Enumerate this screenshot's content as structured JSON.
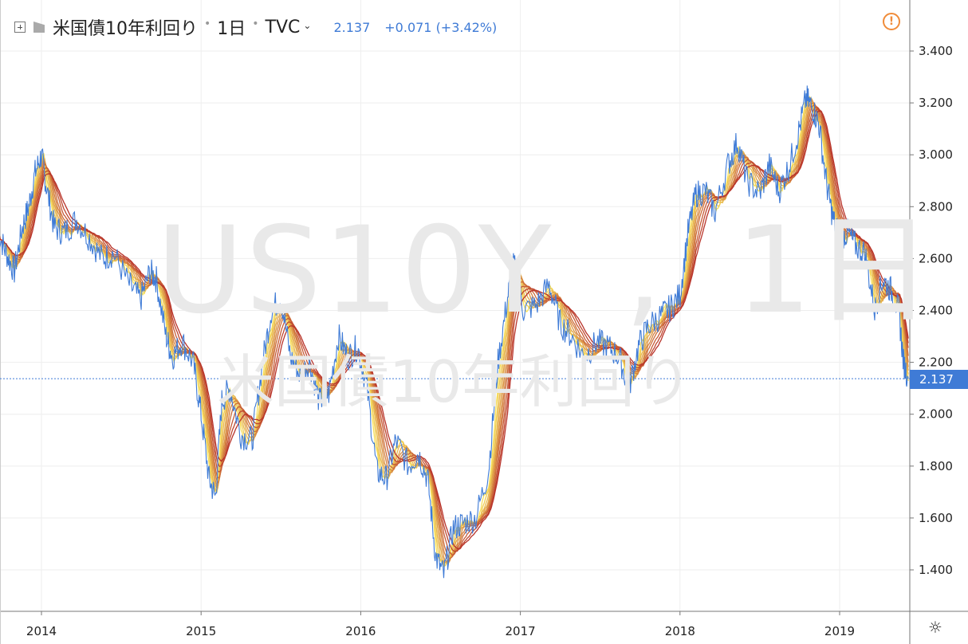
{
  "header": {
    "title": "米国債10年利回り",
    "timeframe": "1日",
    "source": "TVC",
    "last_value": "2.137",
    "change": "+0.071 (+3.42%)"
  },
  "watermark": {
    "symbol": "US10Y",
    "interval": "1日",
    "name": "米国債10年利回り"
  },
  "last_price_label": "2.137",
  "colors": {
    "price_line": "#3f7bd6",
    "ma_fast": "#f7e05a",
    "ma_slow": "#b8332a",
    "alert": "#f08c3a",
    "grid": "#eeeeee"
  },
  "icons": {
    "add": "plus-square-icon",
    "flag": "flag-icon",
    "alert": "alert-circle-icon",
    "settings": "gear-icon"
  },
  "chart_data": {
    "type": "line",
    "x_ticks": [
      "2014",
      "2015",
      "2016",
      "2017",
      "2018",
      "2019"
    ],
    "y_ticks": [
      "3.400",
      "3.200",
      "3.000",
      "2.800",
      "2.600",
      "2.400",
      "2.200",
      "2.000",
      "1.800",
      "1.600",
      "1.400"
    ],
    "ylim": [
      1.3,
      3.42
    ],
    "xlim": [
      2013.73,
      2019.43
    ],
    "grid": true,
    "series": [
      {
        "values": [
          [
            2013.73,
            2.7
          ],
          [
            2013.78,
            2.62
          ],
          [
            2013.83,
            2.55
          ],
          [
            2013.88,
            2.72
          ],
          [
            2013.92,
            2.8
          ],
          [
            2013.96,
            2.93
          ],
          [
            2014.0,
            3.0
          ],
          [
            2014.03,
            2.88
          ],
          [
            2014.08,
            2.72
          ],
          [
            2014.14,
            2.7
          ],
          [
            2014.22,
            2.75
          ],
          [
            2014.3,
            2.68
          ],
          [
            2014.38,
            2.6
          ],
          [
            2014.45,
            2.62
          ],
          [
            2014.55,
            2.5
          ],
          [
            2014.62,
            2.44
          ],
          [
            2014.68,
            2.55
          ],
          [
            2014.72,
            2.52
          ],
          [
            2014.78,
            2.3
          ],
          [
            2014.82,
            2.22
          ],
          [
            2014.88,
            2.28
          ],
          [
            2014.95,
            2.2
          ],
          [
            2015.0,
            2.0
          ],
          [
            2015.05,
            1.75
          ],
          [
            2015.09,
            1.68
          ],
          [
            2015.13,
            2.05
          ],
          [
            2015.18,
            2.1
          ],
          [
            2015.25,
            1.92
          ],
          [
            2015.32,
            1.9
          ],
          [
            2015.38,
            2.18
          ],
          [
            2015.44,
            2.4
          ],
          [
            2015.5,
            2.45
          ],
          [
            2015.56,
            2.22
          ],
          [
            2015.62,
            2.15
          ],
          [
            2015.68,
            2.2
          ],
          [
            2015.74,
            2.05
          ],
          [
            2015.8,
            2.08
          ],
          [
            2015.86,
            2.3
          ],
          [
            2015.92,
            2.22
          ],
          [
            2015.98,
            2.26
          ],
          [
            2016.04,
            2.1
          ],
          [
            2016.1,
            1.78
          ],
          [
            2016.16,
            1.75
          ],
          [
            2016.22,
            1.9
          ],
          [
            2016.3,
            1.8
          ],
          [
            2016.36,
            1.85
          ],
          [
            2016.42,
            1.75
          ],
          [
            2016.47,
            1.45
          ],
          [
            2016.52,
            1.38
          ],
          [
            2016.58,
            1.56
          ],
          [
            2016.64,
            1.58
          ],
          [
            2016.72,
            1.6
          ],
          [
            2016.8,
            1.78
          ],
          [
            2016.86,
            2.2
          ],
          [
            2016.92,
            2.45
          ],
          [
            2016.96,
            2.58
          ],
          [
            2017.02,
            2.4
          ],
          [
            2017.1,
            2.42
          ],
          [
            2017.18,
            2.5
          ],
          [
            2017.25,
            2.35
          ],
          [
            2017.32,
            2.3
          ],
          [
            2017.4,
            2.22
          ],
          [
            2017.48,
            2.28
          ],
          [
            2017.55,
            2.26
          ],
          [
            2017.62,
            2.22
          ],
          [
            2017.68,
            2.1
          ],
          [
            2017.74,
            2.26
          ],
          [
            2017.8,
            2.34
          ],
          [
            2017.88,
            2.38
          ],
          [
            2017.94,
            2.41
          ],
          [
            2018.0,
            2.46
          ],
          [
            2018.05,
            2.7
          ],
          [
            2018.1,
            2.85
          ],
          [
            2018.16,
            2.86
          ],
          [
            2018.22,
            2.78
          ],
          [
            2018.3,
            2.96
          ],
          [
            2018.36,
            3.05
          ],
          [
            2018.42,
            2.9
          ],
          [
            2018.5,
            2.85
          ],
          [
            2018.56,
            2.96
          ],
          [
            2018.62,
            2.86
          ],
          [
            2018.68,
            2.95
          ],
          [
            2018.74,
            3.08
          ],
          [
            2018.79,
            3.22
          ],
          [
            2018.83,
            3.18
          ],
          [
            2018.87,
            3.12
          ],
          [
            2018.92,
            2.88
          ],
          [
            2018.96,
            2.75
          ],
          [
            2019.0,
            2.68
          ],
          [
            2019.05,
            2.7
          ],
          [
            2019.1,
            2.65
          ],
          [
            2019.16,
            2.62
          ],
          [
            2019.22,
            2.4
          ],
          [
            2019.27,
            2.52
          ],
          [
            2019.32,
            2.48
          ],
          [
            2019.37,
            2.4
          ],
          [
            2019.4,
            2.2
          ],
          [
            2019.43,
            2.137
          ]
        ]
      }
    ]
  }
}
